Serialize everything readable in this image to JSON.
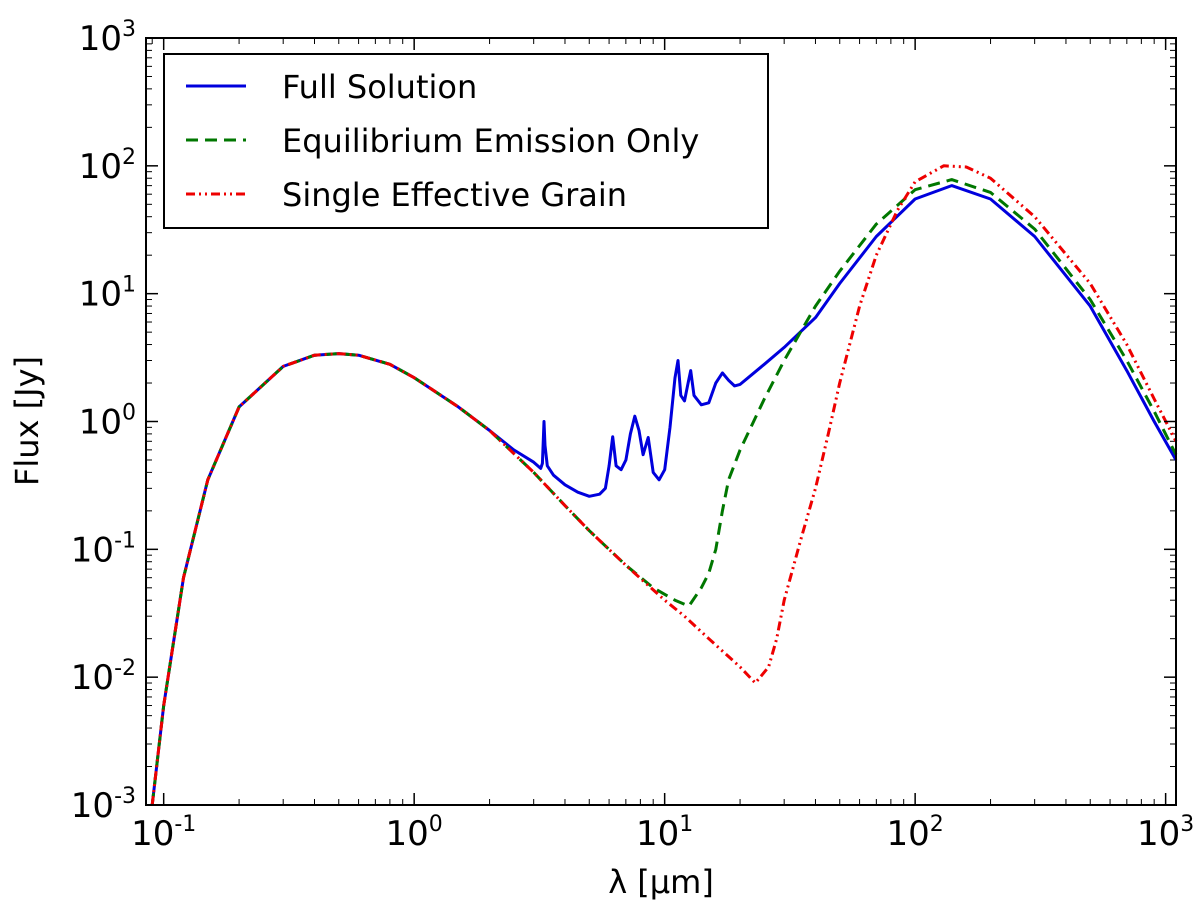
{
  "chart_data": {
    "type": "line",
    "title": "",
    "xlabel": "λ [μm]",
    "ylabel": "Flux [Jy]",
    "xscale": "log",
    "yscale": "log",
    "xlim": [
      0.085,
      1100
    ],
    "ylim": [
      0.001,
      1000
    ],
    "legend_position": "top-left",
    "x_ticks": [
      {
        "value": 0.1,
        "base": "10",
        "exp": "-1"
      },
      {
        "value": 1,
        "base": "10",
        "exp": "0"
      },
      {
        "value": 10,
        "base": "10",
        "exp": "1"
      },
      {
        "value": 100,
        "base": "10",
        "exp": "2"
      },
      {
        "value": 1000,
        "base": "10",
        "exp": "3"
      }
    ],
    "y_ticks": [
      {
        "value": 0.001,
        "base": "10",
        "exp": "-3"
      },
      {
        "value": 0.01,
        "base": "10",
        "exp": "-2"
      },
      {
        "value": 0.1,
        "base": "10",
        "exp": "-1"
      },
      {
        "value": 1,
        "base": "10",
        "exp": "0"
      },
      {
        "value": 10,
        "base": "10",
        "exp": "1"
      },
      {
        "value": 100,
        "base": "10",
        "exp": "2"
      },
      {
        "value": 1000,
        "base": "10",
        "exp": "3"
      }
    ],
    "series": [
      {
        "name": "Full Solution",
        "color": "#0000dd",
        "style": "solid",
        "points": [
          [
            0.09,
            0.001
          ],
          [
            0.1,
            0.006
          ],
          [
            0.12,
            0.06
          ],
          [
            0.15,
            0.35
          ],
          [
            0.2,
            1.3
          ],
          [
            0.3,
            2.7
          ],
          [
            0.4,
            3.3
          ],
          [
            0.5,
            3.4
          ],
          [
            0.6,
            3.3
          ],
          [
            0.8,
            2.8
          ],
          [
            1.0,
            2.2
          ],
          [
            1.5,
            1.3
          ],
          [
            2.0,
            0.85
          ],
          [
            2.5,
            0.6
          ],
          [
            3.0,
            0.48
          ],
          [
            3.2,
            0.43
          ],
          [
            3.25,
            0.47
          ],
          [
            3.28,
            0.75
          ],
          [
            3.3,
            1.0
          ],
          [
            3.33,
            0.65
          ],
          [
            3.4,
            0.45
          ],
          [
            3.6,
            0.38
          ],
          [
            4.0,
            0.32
          ],
          [
            4.5,
            0.28
          ],
          [
            5.0,
            0.26
          ],
          [
            5.5,
            0.27
          ],
          [
            5.8,
            0.3
          ],
          [
            6.0,
            0.45
          ],
          [
            6.2,
            0.76
          ],
          [
            6.4,
            0.45
          ],
          [
            6.7,
            0.42
          ],
          [
            7.0,
            0.5
          ],
          [
            7.3,
            0.8
          ],
          [
            7.6,
            1.1
          ],
          [
            7.9,
            0.85
          ],
          [
            8.2,
            0.55
          ],
          [
            8.6,
            0.75
          ],
          [
            9.0,
            0.4
          ],
          [
            9.5,
            0.35
          ],
          [
            10.0,
            0.42
          ],
          [
            10.5,
            0.9
          ],
          [
            11.0,
            2.2
          ],
          [
            11.3,
            3.0
          ],
          [
            11.6,
            1.6
          ],
          [
            12.0,
            1.45
          ],
          [
            12.4,
            2.0
          ],
          [
            12.7,
            2.5
          ],
          [
            13.1,
            1.6
          ],
          [
            14.0,
            1.35
          ],
          [
            15.0,
            1.4
          ],
          [
            16.0,
            2.0
          ],
          [
            17.0,
            2.4
          ],
          [
            18.0,
            2.1
          ],
          [
            19.0,
            1.9
          ],
          [
            20.0,
            1.95
          ],
          [
            25.0,
            2.8
          ],
          [
            30.0,
            3.8
          ],
          [
            40.0,
            6.5
          ],
          [
            50.0,
            12.0
          ],
          [
            70.0,
            28.0
          ],
          [
            100.0,
            55.0
          ],
          [
            140.0,
            70.0
          ],
          [
            200.0,
            55.0
          ],
          [
            300.0,
            28.0
          ],
          [
            500.0,
            8.0
          ],
          [
            700.0,
            2.5
          ],
          [
            900.0,
            1.0
          ],
          [
            1100.0,
            0.5
          ]
        ]
      },
      {
        "name": "Equilibrium Emission Only",
        "color": "#007700",
        "style": "dashed",
        "points": [
          [
            0.09,
            0.001
          ],
          [
            0.1,
            0.006
          ],
          [
            0.12,
            0.06
          ],
          [
            0.15,
            0.35
          ],
          [
            0.2,
            1.3
          ],
          [
            0.3,
            2.7
          ],
          [
            0.4,
            3.3
          ],
          [
            0.5,
            3.4
          ],
          [
            0.6,
            3.3
          ],
          [
            0.8,
            2.8
          ],
          [
            1.0,
            2.2
          ],
          [
            1.5,
            1.3
          ],
          [
            2.0,
            0.85
          ],
          [
            3.0,
            0.4
          ],
          [
            4.0,
            0.22
          ],
          [
            5.0,
            0.14
          ],
          [
            7.0,
            0.075
          ],
          [
            9.0,
            0.05
          ],
          [
            11.0,
            0.04
          ],
          [
            12.5,
            0.036
          ],
          [
            14.0,
            0.05
          ],
          [
            15.0,
            0.065
          ],
          [
            16.0,
            0.1
          ],
          [
            17.0,
            0.2
          ],
          [
            18.0,
            0.35
          ],
          [
            20.0,
            0.6
          ],
          [
            25.0,
            1.5
          ],
          [
            30.0,
            3.0
          ],
          [
            40.0,
            8.0
          ],
          [
            50.0,
            15.0
          ],
          [
            70.0,
            35.0
          ],
          [
            100.0,
            65.0
          ],
          [
            140.0,
            78.0
          ],
          [
            200.0,
            62.0
          ],
          [
            300.0,
            32.0
          ],
          [
            500.0,
            9.0
          ],
          [
            700.0,
            3.0
          ],
          [
            900.0,
            1.2
          ],
          [
            1100.0,
            0.55
          ]
        ]
      },
      {
        "name": "Single Effective Grain",
        "color": "#ee0000",
        "style": "dash-dot-dot",
        "points": [
          [
            0.09,
            0.001
          ],
          [
            0.1,
            0.006
          ],
          [
            0.12,
            0.06
          ],
          [
            0.15,
            0.35
          ],
          [
            0.2,
            1.3
          ],
          [
            0.3,
            2.7
          ],
          [
            0.4,
            3.3
          ],
          [
            0.5,
            3.4
          ],
          [
            0.6,
            3.3
          ],
          [
            0.8,
            2.8
          ],
          [
            1.0,
            2.2
          ],
          [
            1.5,
            1.3
          ],
          [
            2.0,
            0.85
          ],
          [
            3.0,
            0.4
          ],
          [
            4.0,
            0.22
          ],
          [
            5.0,
            0.14
          ],
          [
            7.0,
            0.075
          ],
          [
            10.0,
            0.04
          ],
          [
            12.0,
            0.03
          ],
          [
            15.0,
            0.02
          ],
          [
            20.0,
            0.012
          ],
          [
            23.0,
            0.009
          ],
          [
            26.0,
            0.012
          ],
          [
            28.0,
            0.02
          ],
          [
            30.0,
            0.04
          ],
          [
            35.0,
            0.12
          ],
          [
            40.0,
            0.3
          ],
          [
            45.0,
            0.8
          ],
          [
            50.0,
            2.0
          ],
          [
            60.0,
            8.0
          ],
          [
            70.0,
            20.0
          ],
          [
            85.0,
            45.0
          ],
          [
            100.0,
            75.0
          ],
          [
            130.0,
            100.0
          ],
          [
            160.0,
            98.0
          ],
          [
            200.0,
            80.0
          ],
          [
            300.0,
            40.0
          ],
          [
            500.0,
            12.0
          ],
          [
            700.0,
            4.0
          ],
          [
            900.0,
            1.5
          ],
          [
            1100.0,
            0.7
          ]
        ]
      }
    ]
  }
}
